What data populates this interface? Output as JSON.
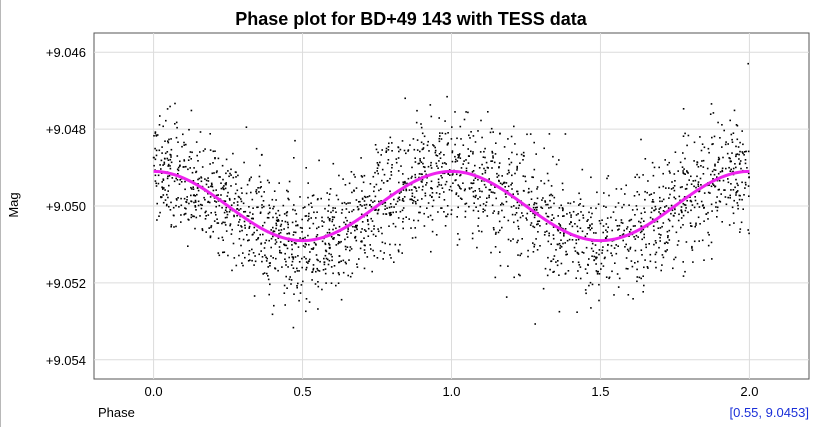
{
  "chart_data": {
    "type": "scatter",
    "title": "Phase plot for BD+49 143 with TESS data",
    "xlabel": "Phase",
    "ylabel": "Mag",
    "xlim": [
      -0.2,
      2.2
    ],
    "ylim": [
      9.0545,
      9.0455
    ],
    "y_axis_inverted": true,
    "grid": true,
    "x_ticks": [
      0.0,
      0.5,
      1.0,
      1.5,
      2.0
    ],
    "x_tick_labels": [
      "0.0",
      "0.5",
      "1.0",
      "1.5",
      "2.0"
    ],
    "y_ticks": [
      9.046,
      9.048,
      9.05,
      9.052,
      9.054
    ],
    "y_tick_labels": [
      "+9.046",
      "+9.048",
      "+9.050",
      "+9.052",
      "+9.054"
    ],
    "series": [
      {
        "kind": "scatter",
        "color": "#000000",
        "x_range": [
          0.0,
          2.0
        ],
        "approx_point_count": 2400,
        "y_mean_curve": "9.0500 - 0.0009*cos(2*pi*phase)",
        "y_scatter_sd": 0.0009
      },
      {
        "kind": "line",
        "color": "#ee22ee",
        "x": [
          0.0,
          0.25,
          0.5,
          0.75,
          1.0,
          1.25,
          1.5,
          1.75,
          2.0
        ],
        "y": [
          9.0491,
          9.05,
          9.0509,
          9.05,
          9.0491,
          9.05,
          9.0509,
          9.05,
          9.0491
        ]
      }
    ]
  },
  "cursor_readout": "[0.55, 9.0453]"
}
